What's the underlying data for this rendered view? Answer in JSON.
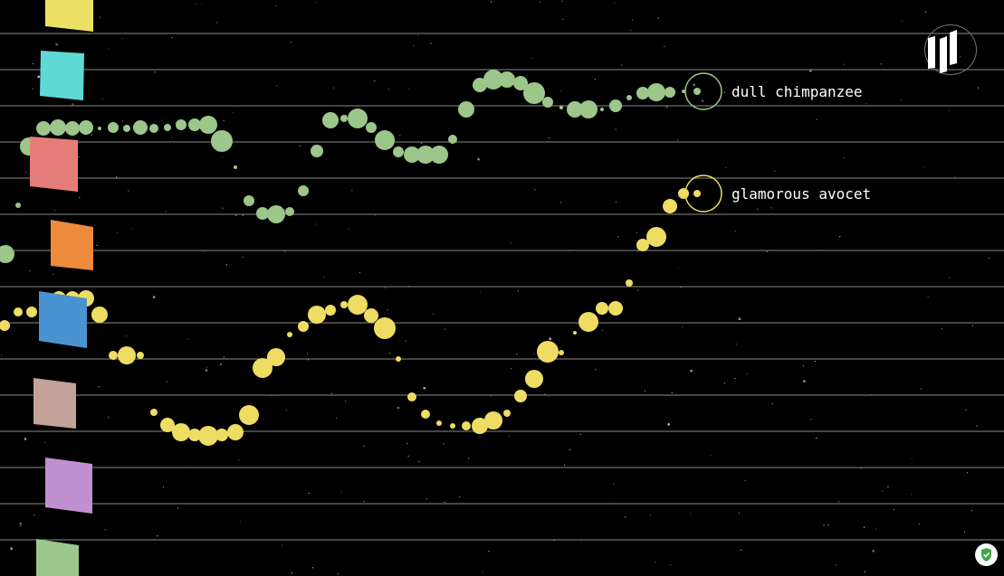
{
  "colors": {
    "background": "#000000",
    "staff_line": "#8a8a8a",
    "chimpanzee": "#9cc68a",
    "avocet": "#efdd63"
  },
  "players": [
    {
      "name": "dull chimpanzee",
      "color": "#9cc68a"
    },
    {
      "name": "glamorous avocet",
      "color": "#efdd63"
    }
  ],
  "palette_keys": [
    {
      "color": "#ece067",
      "name": "yellow-key"
    },
    {
      "color": "#5fd9d6",
      "name": "cyan-key"
    },
    {
      "color": "#e47d78",
      "name": "red-key"
    },
    {
      "color": "#ee8a3c",
      "name": "orange-key"
    },
    {
      "color": "#4a93d2",
      "name": "blue-key"
    },
    {
      "color": "#c2a29b",
      "name": "mauve-key"
    },
    {
      "color": "#c190d0",
      "name": "purple-key"
    },
    {
      "color": "#9cc68a",
      "name": "green-key"
    }
  ],
  "icons": {
    "logo": "equalizer-logo-icon",
    "privacy": "shield-check-icon"
  }
}
